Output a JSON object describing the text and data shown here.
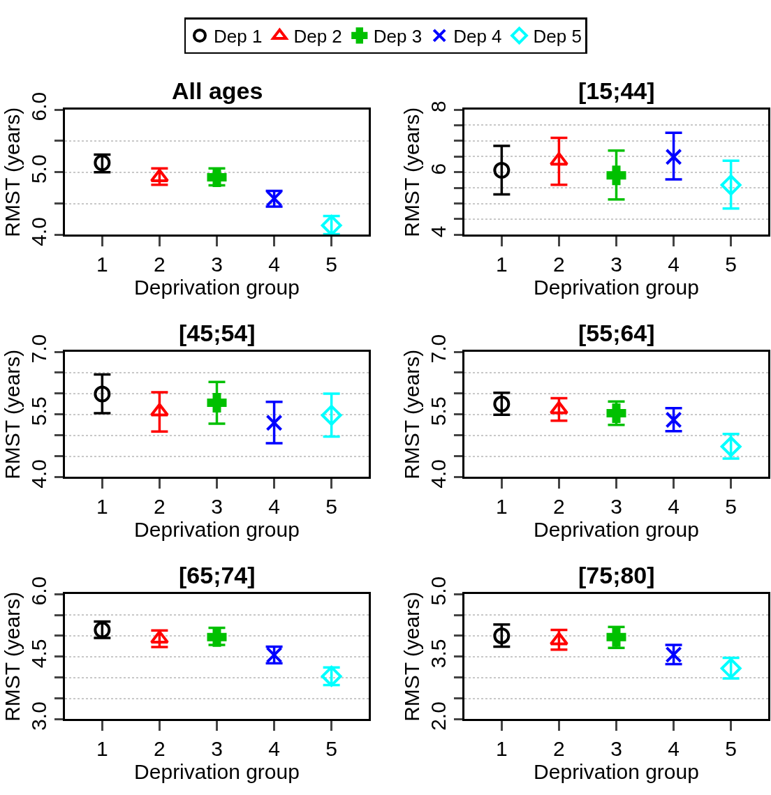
{
  "chart_data": [
    {
      "type": "scatter",
      "title": "All ages",
      "xlabel": "Deprivation group",
      "ylabel": "RMST (years)",
      "categories": [
        "1",
        "2",
        "3",
        "4",
        "5"
      ],
      "ylim": [
        4.0,
        6.0
      ],
      "yticks": [
        {
          "value": 4.0,
          "label": "4.0"
        },
        {
          "value": 4.5,
          "label": null
        },
        {
          "value": 5.0,
          "label": "5.0"
        },
        {
          "value": 5.5,
          "label": null
        },
        {
          "value": 6.0,
          "label": "6.0"
        }
      ],
      "grid": "y",
      "legend": "top",
      "series": [
        {
          "name": "Dep 1",
          "color": "#000000",
          "marker": "circle",
          "x": [
            "1"
          ],
          "values": [
            5.15
          ],
          "errors": [
            [
              5.0,
              5.28
            ]
          ]
        },
        {
          "name": "Dep 2",
          "color": "#ff0000",
          "marker": "triangle",
          "x": [
            "2"
          ],
          "values": [
            4.92
          ],
          "errors": [
            [
              4.8,
              5.06
            ]
          ]
        },
        {
          "name": "Dep 3",
          "color": "#00c000",
          "marker": "cross",
          "x": [
            "3"
          ],
          "values": [
            4.92
          ],
          "errors": [
            [
              4.79,
              5.06
            ]
          ]
        },
        {
          "name": "Dep 4",
          "color": "#0000ff",
          "marker": "x",
          "x": [
            "4"
          ],
          "values": [
            4.58
          ],
          "errors": [
            [
              4.45,
              4.7
            ]
          ]
        },
        {
          "name": "Dep 5",
          "color": "#00ffff",
          "marker": "diamond",
          "x": [
            "5"
          ],
          "values": [
            4.15
          ],
          "errors": [
            [
              4.01,
              4.3
            ]
          ]
        }
      ]
    },
    {
      "type": "scatter",
      "title": "[15;44]",
      "xlabel": "Deprivation group",
      "ylabel": "RMST (years)",
      "categories": [
        "1",
        "2",
        "3",
        "4",
        "5"
      ],
      "ylim": [
        4,
        8
      ],
      "yticks": [
        4,
        {
          "value": 4.5,
          "label": null
        },
        {
          "value": 5,
          "label": null
        },
        {
          "value": 5.5,
          "label": null
        },
        6,
        {
          "value": 6.5,
          "label": null
        },
        {
          "value": 7,
          "label": null
        },
        {
          "value": 7.5,
          "label": null
        },
        8
      ],
      "grid": "y",
      "series": [
        {
          "color": "#000000",
          "marker": "circle",
          "x": [
            "1"
          ],
          "values": [
            6.06
          ],
          "errors": [
            [
              5.29,
              6.84
            ]
          ]
        },
        {
          "color": "#ff0000",
          "marker": "triangle",
          "x": [
            "2"
          ],
          "values": [
            6.37
          ],
          "errors": [
            [
              5.6,
              7.1
            ]
          ]
        },
        {
          "color": "#00c000",
          "marker": "cross",
          "x": [
            "3"
          ],
          "values": [
            5.9
          ],
          "errors": [
            [
              5.13,
              6.69
            ]
          ]
        },
        {
          "color": "#0000ff",
          "marker": "x",
          "x": [
            "4"
          ],
          "values": [
            6.49
          ],
          "errors": [
            [
              5.77,
              7.26
            ]
          ]
        },
        {
          "color": "#00ffff",
          "marker": "diamond",
          "x": [
            "5"
          ],
          "values": [
            5.59
          ],
          "errors": [
            [
              4.84,
              6.37
            ]
          ]
        }
      ]
    },
    {
      "type": "scatter",
      "title": "[45;54]",
      "xlabel": "Deprivation group",
      "ylabel": "RMST (years)",
      "categories": [
        "1",
        "2",
        "3",
        "4",
        "5"
      ],
      "ylim": [
        4.0,
        7.0
      ],
      "yticks": [
        {
          "value": 4.0,
          "label": "4.0"
        },
        {
          "value": 4.5,
          "label": null
        },
        {
          "value": 5.0,
          "label": null
        },
        {
          "value": 5.5,
          "label": "5.5"
        },
        {
          "value": 6.0,
          "label": null
        },
        {
          "value": 6.5,
          "label": null
        },
        {
          "value": 7.0,
          "label": "7.0"
        }
      ],
      "grid": "y",
      "series": [
        {
          "color": "#000000",
          "marker": "circle",
          "x": [
            "1"
          ],
          "values": [
            5.99
          ],
          "errors": [
            [
              5.53,
              6.46
            ]
          ]
        },
        {
          "color": "#ff0000",
          "marker": "triangle",
          "x": [
            "2"
          ],
          "values": [
            5.57
          ],
          "errors": [
            [
              5.09,
              6.03
            ]
          ]
        },
        {
          "color": "#00c000",
          "marker": "cross",
          "x": [
            "3"
          ],
          "values": [
            5.78
          ],
          "errors": [
            [
              5.28,
              6.28
            ]
          ]
        },
        {
          "color": "#0000ff",
          "marker": "x",
          "x": [
            "4"
          ],
          "values": [
            5.3
          ],
          "errors": [
            [
              4.81,
              5.8
            ]
          ]
        },
        {
          "color": "#00ffff",
          "marker": "diamond",
          "x": [
            "5"
          ],
          "values": [
            5.48
          ],
          "errors": [
            [
              4.97,
              6.0
            ]
          ]
        }
      ]
    },
    {
      "type": "scatter",
      "title": "[55;64]",
      "xlabel": "Deprivation group",
      "ylabel": "RMST (years)",
      "categories": [
        "1",
        "2",
        "3",
        "4",
        "5"
      ],
      "ylim": [
        4.0,
        7.0
      ],
      "yticks": [
        {
          "value": 4.0,
          "label": "4.0"
        },
        {
          "value": 4.5,
          "label": null
        },
        {
          "value": 5.0,
          "label": null
        },
        {
          "value": 5.5,
          "label": "5.5"
        },
        {
          "value": 6.0,
          "label": null
        },
        {
          "value": 6.5,
          "label": null
        },
        {
          "value": 7.0,
          "label": "7.0"
        }
      ],
      "grid": "y",
      "series": [
        {
          "color": "#000000",
          "marker": "circle",
          "x": [
            "1"
          ],
          "values": [
            5.75
          ],
          "errors": [
            [
              5.49,
              6.02
            ]
          ]
        },
        {
          "color": "#ff0000",
          "marker": "triangle",
          "x": [
            "2"
          ],
          "values": [
            5.62
          ],
          "errors": [
            [
              5.35,
              5.89
            ]
          ]
        },
        {
          "color": "#00c000",
          "marker": "cross",
          "x": [
            "3"
          ],
          "values": [
            5.53
          ],
          "errors": [
            [
              5.25,
              5.81
            ]
          ]
        },
        {
          "color": "#0000ff",
          "marker": "x",
          "x": [
            "4"
          ],
          "values": [
            5.37
          ],
          "errors": [
            [
              5.1,
              5.65
            ]
          ]
        },
        {
          "color": "#00ffff",
          "marker": "diamond",
          "x": [
            "5"
          ],
          "values": [
            4.73
          ],
          "errors": [
            [
              4.44,
              5.03
            ]
          ]
        }
      ]
    },
    {
      "type": "scatter",
      "title": "[65;74]",
      "xlabel": "Deprivation group",
      "ylabel": "RMST (years)",
      "categories": [
        "1",
        "2",
        "3",
        "4",
        "5"
      ],
      "ylim": [
        3.0,
        6.0
      ],
      "yticks": [
        {
          "value": 3.0,
          "label": "3.0"
        },
        {
          "value": 3.5,
          "label": null
        },
        {
          "value": 4.0,
          "label": null
        },
        {
          "value": 4.5,
          "label": "4.5"
        },
        {
          "value": 5.0,
          "label": null
        },
        {
          "value": 5.5,
          "label": null
        },
        {
          "value": 6.0,
          "label": "6.0"
        }
      ],
      "grid": "y",
      "series": [
        {
          "color": "#000000",
          "marker": "circle",
          "x": [
            "1"
          ],
          "values": [
            5.14
          ],
          "errors": [
            [
              4.95,
              5.34
            ]
          ]
        },
        {
          "color": "#ff0000",
          "marker": "triangle",
          "x": [
            "2"
          ],
          "values": [
            4.93
          ],
          "errors": [
            [
              4.73,
              5.13
            ]
          ]
        },
        {
          "color": "#00c000",
          "marker": "cross",
          "x": [
            "3"
          ],
          "values": [
            4.97
          ],
          "errors": [
            [
              4.78,
              5.19
            ]
          ]
        },
        {
          "color": "#0000ff",
          "marker": "x",
          "x": [
            "4"
          ],
          "values": [
            4.54
          ],
          "errors": [
            [
              4.34,
              4.74
            ]
          ]
        },
        {
          "color": "#00ffff",
          "marker": "diamond",
          "x": [
            "5"
          ],
          "values": [
            4.03
          ],
          "errors": [
            [
              3.82,
              4.24
            ]
          ]
        }
      ]
    },
    {
      "type": "scatter",
      "title": "[75;80]",
      "xlabel": "Deprivation group",
      "ylabel": "RMST (years)",
      "categories": [
        "1",
        "2",
        "3",
        "4",
        "5"
      ],
      "ylim": [
        2.0,
        5.0
      ],
      "yticks": [
        {
          "value": 2.0,
          "label": "2.0"
        },
        {
          "value": 2.5,
          "label": null
        },
        {
          "value": 3.0,
          "label": null
        },
        {
          "value": 3.5,
          "label": "3.5"
        },
        {
          "value": 4.0,
          "label": null
        },
        {
          "value": 4.5,
          "label": null
        },
        {
          "value": 5.0,
          "label": "5.0"
        }
      ],
      "grid": "y",
      "series": [
        {
          "color": "#000000",
          "marker": "circle",
          "x": [
            "1"
          ],
          "values": [
            4.0
          ],
          "errors": [
            [
              3.74,
              4.27
            ]
          ]
        },
        {
          "color": "#ff0000",
          "marker": "triangle",
          "x": [
            "2"
          ],
          "values": [
            3.89
          ],
          "errors": [
            [
              3.67,
              4.14
            ]
          ]
        },
        {
          "color": "#00c000",
          "marker": "cross",
          "x": [
            "3"
          ],
          "values": [
            3.97
          ],
          "errors": [
            [
              3.71,
              4.21
            ]
          ]
        },
        {
          "color": "#0000ff",
          "marker": "x",
          "x": [
            "4"
          ],
          "values": [
            3.55
          ],
          "errors": [
            [
              3.32,
              3.78
            ]
          ]
        },
        {
          "color": "#00ffff",
          "marker": "diamond",
          "x": [
            "5"
          ],
          "values": [
            3.22
          ],
          "errors": [
            [
              2.98,
              3.47
            ]
          ]
        }
      ]
    }
  ]
}
